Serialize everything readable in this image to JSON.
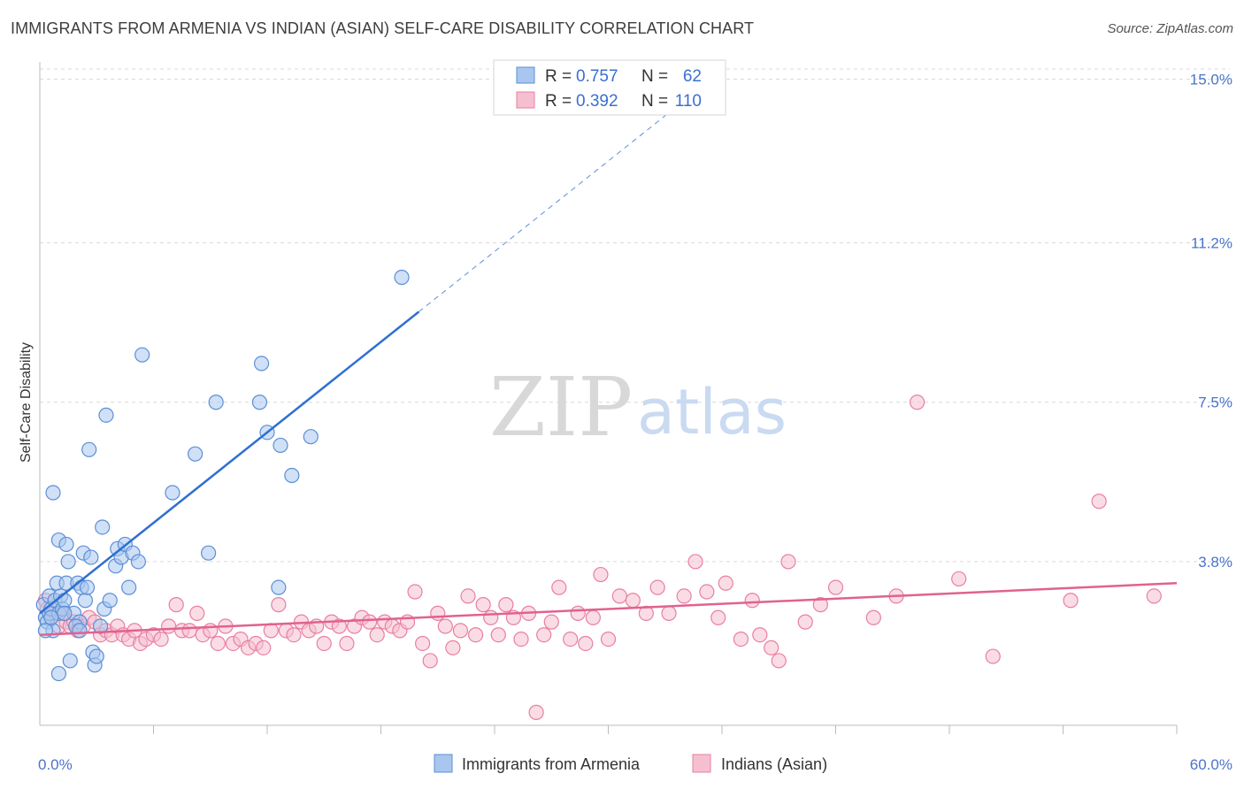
{
  "title": "IMMIGRANTS FROM ARMENIA VS INDIAN (ASIAN) SELF-CARE DISABILITY CORRELATION CHART",
  "source": "Source: ZipAtlas.com",
  "watermark": {
    "zip": "ZIP",
    "atlas": "atlas"
  },
  "colors": {
    "armenia_fill": "#a9c6ef",
    "armenia_stroke": "#5b8fd6",
    "armenia_line": "#2f6fd2",
    "indian_fill": "#f6bfd0",
    "indian_stroke": "#e87fa2",
    "indian_line": "#e0628f",
    "grid": "#d9d9d9",
    "tick_label": "#4a74c9"
  },
  "legend": {
    "rows": [
      {
        "r_label": "R = ",
        "r_value": "0.757",
        "n_label": "N = ",
        "n_value": "62"
      },
      {
        "r_label": "R = ",
        "r_value": "0.392",
        "n_label": "N = ",
        "n_value": "110"
      }
    ]
  },
  "chart_data": {
    "type": "scatter",
    "title": "IMMIGRANTS FROM ARMENIA VS INDIAN (ASIAN) SELF-CARE DISABILITY CORRELATION CHART",
    "xlabel": "",
    "ylabel": "Self-Care Disability",
    "xlim": [
      0,
      60
    ],
    "ylim": [
      0,
      15.4
    ],
    "x_tick_labels": [
      "0.0%",
      "60.0%"
    ],
    "y_ticks": [
      3.8,
      7.5,
      11.2,
      15.0
    ],
    "y_tick_labels": [
      "3.8%",
      "7.5%",
      "11.2%",
      "15.0%"
    ],
    "grid": "horizontal-dashed",
    "legend_position": "top-center",
    "series": [
      {
        "name": "Immigrants from Armenia",
        "r": 0.757,
        "n": 62,
        "trend": {
          "x0": 0.0,
          "y0": 2.6,
          "x1": 20.0,
          "y1": 9.6,
          "dashed_to_x": 33.3
        },
        "points": [
          [
            0.2,
            2.8
          ],
          [
            0.3,
            2.5
          ],
          [
            0.4,
            2.4
          ],
          [
            0.5,
            2.6
          ],
          [
            0.5,
            3.0
          ],
          [
            0.6,
            2.7
          ],
          [
            0.7,
            2.2
          ],
          [
            0.7,
            5.4
          ],
          [
            0.8,
            2.9
          ],
          [
            0.9,
            3.3
          ],
          [
            1.0,
            4.3
          ],
          [
            1.0,
            2.6
          ],
          [
            1.1,
            3.0
          ],
          [
            1.2,
            2.7
          ],
          [
            1.3,
            2.9
          ],
          [
            1.4,
            4.2
          ],
          [
            1.4,
            3.3
          ],
          [
            1.5,
            3.8
          ],
          [
            1.6,
            1.5
          ],
          [
            1.8,
            2.6
          ],
          [
            2.0,
            3.3
          ],
          [
            2.1,
            2.4
          ],
          [
            2.2,
            3.2
          ],
          [
            2.3,
            4.0
          ],
          [
            2.4,
            2.9
          ],
          [
            2.5,
            3.2
          ],
          [
            2.6,
            6.4
          ],
          [
            2.7,
            3.9
          ],
          [
            2.8,
            1.7
          ],
          [
            2.9,
            1.4
          ],
          [
            3.0,
            1.6
          ],
          [
            3.2,
            2.3
          ],
          [
            3.3,
            4.6
          ],
          [
            3.4,
            2.7
          ],
          [
            3.5,
            7.2
          ],
          [
            3.7,
            2.9
          ],
          [
            4.0,
            3.7
          ],
          [
            4.1,
            4.1
          ],
          [
            4.3,
            3.9
          ],
          [
            4.5,
            4.2
          ],
          [
            4.7,
            3.2
          ],
          [
            4.9,
            4.0
          ],
          [
            5.2,
            3.8
          ],
          [
            5.4,
            8.6
          ],
          [
            7.0,
            5.4
          ],
          [
            8.2,
            6.3
          ],
          [
            8.9,
            4.0
          ],
          [
            9.3,
            7.5
          ],
          [
            11.6,
            7.5
          ],
          [
            11.7,
            8.4
          ],
          [
            12.0,
            6.8
          ],
          [
            12.6,
            3.2
          ],
          [
            12.7,
            6.5
          ],
          [
            13.3,
            5.8
          ],
          [
            14.3,
            6.7
          ],
          [
            19.1,
            10.4
          ],
          [
            1.0,
            1.2
          ],
          [
            0.6,
            2.5
          ],
          [
            1.9,
            2.3
          ],
          [
            2.1,
            2.2
          ],
          [
            0.3,
            2.2
          ],
          [
            1.3,
            2.6
          ]
        ]
      },
      {
        "name": "Indians (Asian)",
        "r": 0.392,
        "n": 110,
        "trend": {
          "x0": 0.0,
          "y0": 2.1,
          "x1": 60.0,
          "y1": 3.3
        },
        "points": [
          [
            0.3,
            2.9
          ],
          [
            0.4,
            2.7
          ],
          [
            0.6,
            2.5
          ],
          [
            0.8,
            2.6
          ],
          [
            1.0,
            2.3
          ],
          [
            1.2,
            2.6
          ],
          [
            1.4,
            2.4
          ],
          [
            1.6,
            2.3
          ],
          [
            1.8,
            2.4
          ],
          [
            2.0,
            2.2
          ],
          [
            2.3,
            2.3
          ],
          [
            2.6,
            2.5
          ],
          [
            2.9,
            2.4
          ],
          [
            3.2,
            2.1
          ],
          [
            3.5,
            2.2
          ],
          [
            3.8,
            2.1
          ],
          [
            4.1,
            2.3
          ],
          [
            4.4,
            2.1
          ],
          [
            4.7,
            2.0
          ],
          [
            5.0,
            2.2
          ],
          [
            5.3,
            1.9
          ],
          [
            5.6,
            2.0
          ],
          [
            6.0,
            2.1
          ],
          [
            6.4,
            2.0
          ],
          [
            6.8,
            2.3
          ],
          [
            7.2,
            2.8
          ],
          [
            7.5,
            2.2
          ],
          [
            7.9,
            2.2
          ],
          [
            8.3,
            2.6
          ],
          [
            8.6,
            2.1
          ],
          [
            9.0,
            2.2
          ],
          [
            9.4,
            1.9
          ],
          [
            9.8,
            2.3
          ],
          [
            10.2,
            1.9
          ],
          [
            10.6,
            2.0
          ],
          [
            11.0,
            1.8
          ],
          [
            11.4,
            1.9
          ],
          [
            11.8,
            1.8
          ],
          [
            12.2,
            2.2
          ],
          [
            12.6,
            2.8
          ],
          [
            13.0,
            2.2
          ],
          [
            13.4,
            2.1
          ],
          [
            13.8,
            2.4
          ],
          [
            14.2,
            2.2
          ],
          [
            14.6,
            2.3
          ],
          [
            15.0,
            1.9
          ],
          [
            15.4,
            2.4
          ],
          [
            15.8,
            2.3
          ],
          [
            16.2,
            1.9
          ],
          [
            16.6,
            2.3
          ],
          [
            17.0,
            2.5
          ],
          [
            17.4,
            2.4
          ],
          [
            17.8,
            2.1
          ],
          [
            18.2,
            2.4
          ],
          [
            18.6,
            2.3
          ],
          [
            19.0,
            2.2
          ],
          [
            19.4,
            2.4
          ],
          [
            19.8,
            3.1
          ],
          [
            20.2,
            1.9
          ],
          [
            20.6,
            1.5
          ],
          [
            21.0,
            2.6
          ],
          [
            21.4,
            2.3
          ],
          [
            21.8,
            1.8
          ],
          [
            22.2,
            2.2
          ],
          [
            22.6,
            3.0
          ],
          [
            23.0,
            2.1
          ],
          [
            23.4,
            2.8
          ],
          [
            23.8,
            2.5
          ],
          [
            24.2,
            2.1
          ],
          [
            24.6,
            2.8
          ],
          [
            25.0,
            2.5
          ],
          [
            25.4,
            2.0
          ],
          [
            25.8,
            2.6
          ],
          [
            26.2,
            0.3
          ],
          [
            26.6,
            2.1
          ],
          [
            27.0,
            2.4
          ],
          [
            27.4,
            3.2
          ],
          [
            28.0,
            2.0
          ],
          [
            28.4,
            2.6
          ],
          [
            28.8,
            1.9
          ],
          [
            29.2,
            2.5
          ],
          [
            29.6,
            3.5
          ],
          [
            30.0,
            2.0
          ],
          [
            30.6,
            3.0
          ],
          [
            31.3,
            2.9
          ],
          [
            32.0,
            2.6
          ],
          [
            32.6,
            3.2
          ],
          [
            33.2,
            2.6
          ],
          [
            34.0,
            3.0
          ],
          [
            34.6,
            3.8
          ],
          [
            35.2,
            3.1
          ],
          [
            35.8,
            2.5
          ],
          [
            36.2,
            3.3
          ],
          [
            37.0,
            2.0
          ],
          [
            37.6,
            2.9
          ],
          [
            38.0,
            2.1
          ],
          [
            38.6,
            1.8
          ],
          [
            39.0,
            1.5
          ],
          [
            39.5,
            3.8
          ],
          [
            40.4,
            2.4
          ],
          [
            41.2,
            2.8
          ],
          [
            42.0,
            3.2
          ],
          [
            44.0,
            2.5
          ],
          [
            45.2,
            3.0
          ],
          [
            46.3,
            7.5
          ],
          [
            48.5,
            3.4
          ],
          [
            50.3,
            1.6
          ],
          [
            54.4,
            2.9
          ],
          [
            55.9,
            5.2
          ],
          [
            58.8,
            3.0
          ]
        ]
      }
    ]
  }
}
